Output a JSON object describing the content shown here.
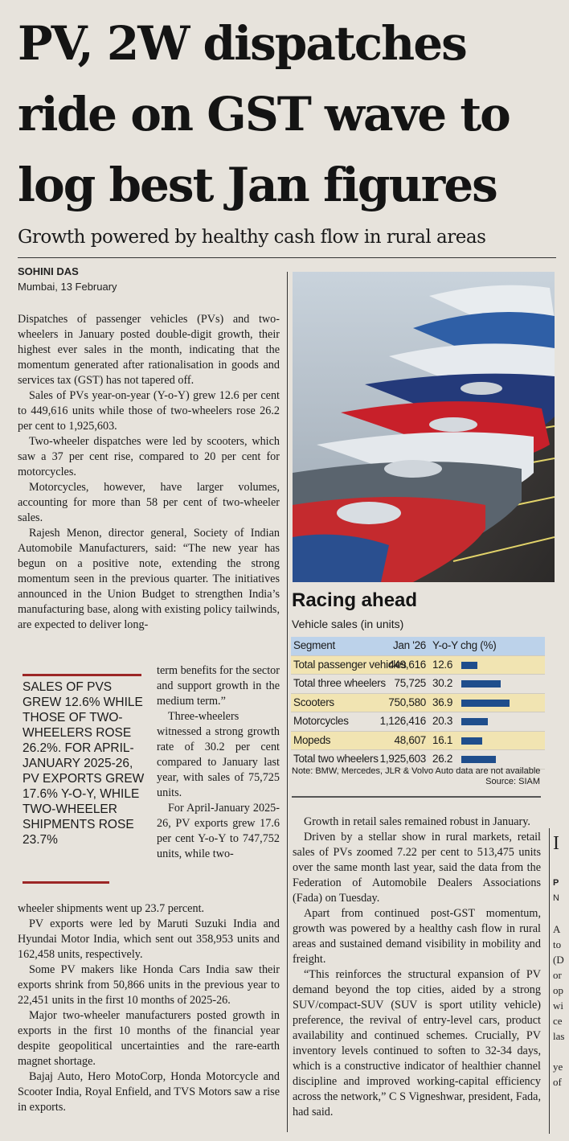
{
  "headline": {
    "line1": "PV, 2W dispatches",
    "line2": "ride on GST wave to",
    "line3": "log best Jan figures"
  },
  "subhead": "Growth powered by healthy cash flow in rural areas",
  "byline": {
    "author": "SOHINI DAS",
    "dateline": "Mumbai, 13 February"
  },
  "body_left_top": [
    "Dispatches of passenger vehicles (PVs) and two-wheelers in January posted double-digit growth, their highest ever sales in the month, indicating that the momentum generated after rationalisation in goods and services tax (GST) has not tapered off.",
    "Sales of PVs year-on-year (Y-o-Y) grew 12.6 per cent to 449,616 units while those of two-wheelers rose 26.2 per cent to 1,925,603.",
    "Two-wheeler dispatches were led by scooters, which saw a 37 per cent rise, compared to 20 per cent for motorcycles.",
    "Motorcycles, however, have larger volumes, accounting for more than 58 per cent of two-wheeler sales.",
    "Rajesh Menon, director general, Society of Indian Automobile Manufacturers, said: “The new year has begun on a positive note, extending the strong momentum seen in the previous quarter. The initiatives announced in the Union Budget to strengthen India’s manufacturing base, along with existing policy tailwinds, are expected to deliver long-"
  ],
  "body_left_mid": [
    "term benefits for the sector and support growth in the medium term.”",
    "Three-wheelers witnessed a strong growth rate of 30.2 per cent compared to January last year, with sales of 75,725 units.",
    "For April-January 2025-26, PV exports grew 17.6 per cent Y-o-Y to 747,752 units, while two-"
  ],
  "body_left_bottom": [
    "wheeler shipments went up 23.7 percent.",
    "PV exports were led by Maruti Suzuki India and Hyundai Motor India, which sent out 358,953 units and 162,458 units, respectively.",
    "Some PV makers like Honda Cars India saw their exports shrink from 50,866 units in the previous year to 22,451 units in the first 10 months of 2025-26.",
    "Major two-wheeler manufacturers posted growth in exports in the first 10 months of the financial year despite geopolitical uncertainties and the rare-earth magnet shortage.",
    "Bajaj Auto, Hero MotoCorp, Honda Motorcycle and Scooter India, Royal Enfield, and TVS Motors saw a rise in exports."
  ],
  "pull_quote": "Sales of PVs grew 12.6% while those of two-wheelers rose 26.2%. For April-January 2025-26, PV exports grew 17.6% Y-o-Y, while two-wheeler shipments rose 23.7%",
  "chart_data": {
    "type": "table",
    "title": "Racing ahead",
    "subtitle": "Vehicle sales (in units)",
    "columns": [
      "Segment",
      "Jan '26",
      "Y-o-Y chg (%)"
    ],
    "rows": [
      {
        "segment": "Total passenger vehicles",
        "jan26": "449,616",
        "chg": "12.6",
        "chg_value": 12.6
      },
      {
        "segment": "Total three wheelers",
        "jan26": "75,725",
        "chg": "30.2",
        "chg_value": 30.2
      },
      {
        "segment": "Scooters",
        "jan26": "750,580",
        "chg": "36.9",
        "chg_value": 36.9
      },
      {
        "segment": "Motorcycles",
        "jan26": "1,126,416",
        "chg": "20.3",
        "chg_value": 20.3
      },
      {
        "segment": "Mopeds",
        "jan26": "48,607",
        "chg": "16.1",
        "chg_value": 16.1
      },
      {
        "segment": "Total two wheelers",
        "jan26": "1,925,603",
        "chg": "26.2",
        "chg_value": 26.2
      }
    ],
    "note": "Note: BMW, Mercedes, JLR & Volvo Auto data are not available",
    "source": "Source: SIAM",
    "colors": {
      "header": "#bcd2ea",
      "highlight_row": "#f1e4b2",
      "bar": "#1f4e8c"
    }
  },
  "body_right": [
    "Growth in retail sales remained robust in January.",
    "Driven by a stellar show in rural markets, retail sales of PVs zoomed 7.22 per cent to 513,475 units over the same month last year, said the data from the Federation of Automobile Dealers Associations (Fada) on Tuesday.",
    "Apart from continued post-GST momentum, growth was powered by a healthy cash flow in rural areas and sustained demand visibility in mobility and freight.",
    "“This reinforces the structural expansion of PV demand beyond the top cities, aided by a strong SUV/compact-SUV (SUV is sport utility vehicle) preference, the revival of entry-level cars, product availability and continued schemes. Crucially, PV inventory levels continued to soften to 32-34 days, which is a constructive indicator of healthier channel discipline and improved working-capital efficiency across the network,” C S Vigneshwar, president, Fada, had said."
  ],
  "edge_fragments": [
    "I",
    "",
    "P",
    "N",
    "",
    "A",
    "to",
    "(D",
    "or",
    "op",
    "wi",
    "ce",
    "las",
    "",
    "ye",
    "of"
  ]
}
